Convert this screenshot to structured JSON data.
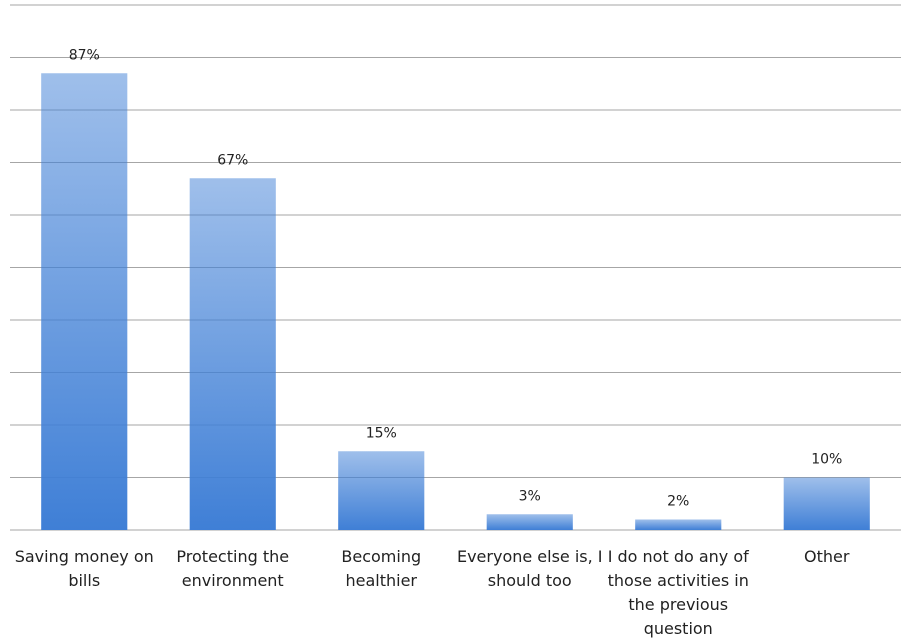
{
  "chart_data": {
    "type": "bar",
    "categories": [
      "Saving money on bills",
      "Protecting the environment",
      "Becoming healthier",
      "Everyone else is, I should too",
      "I do not do any of those activities in the previous question",
      "Other"
    ],
    "values": [
      87,
      67,
      15,
      3,
      2,
      10
    ],
    "value_labels": [
      "87%",
      "67%",
      "15%",
      "3%",
      "2%",
      "10%"
    ],
    "color": "#3f7fd6",
    "ylim": [
      0,
      100
    ],
    "yticks": [
      0,
      10,
      20,
      30,
      40,
      50,
      60,
      70,
      80,
      90,
      100
    ],
    "grid": true
  }
}
